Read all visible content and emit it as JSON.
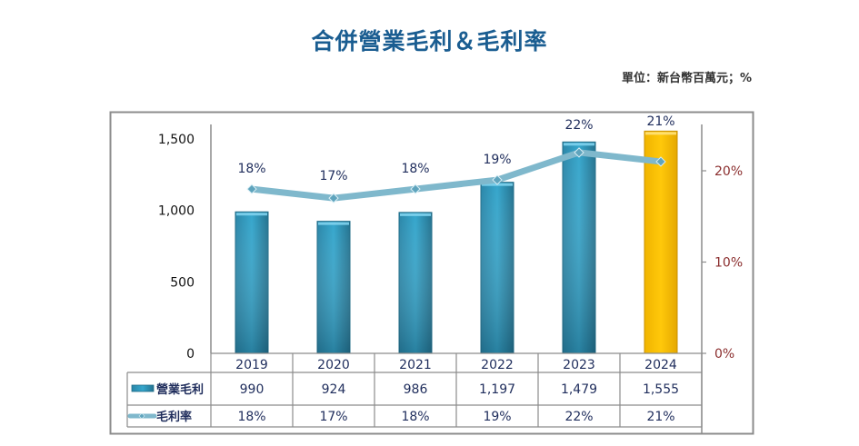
{
  "title": "合併營業毛利＆毛利率",
  "unit_label": "單位：新台幣百萬元；%",
  "colors": {
    "title": "#1a5d91",
    "bar": "#2e9ac0",
    "bar_highlight": "#ffc000",
    "line": "#7fb8cc",
    "left_tick": "#111111",
    "right_tick": "#8b2e2e",
    "data_label": "#1f2d5c"
  },
  "chart_data": {
    "type": "bar",
    "title": "合併營業毛利＆毛利率",
    "categories": [
      "2019",
      "2020",
      "2021",
      "2022",
      "2023",
      "2024"
    ],
    "series": [
      {
        "name": "營業毛利",
        "type": "bar",
        "axis": "left",
        "values": [
          990,
          924,
          986,
          1197,
          1479,
          1555
        ],
        "highlight_index": 5
      },
      {
        "name": "毛利率",
        "type": "line",
        "axis": "right",
        "values": [
          18,
          17,
          18,
          19,
          22,
          21
        ],
        "labels": [
          "18%",
          "17%",
          "18%",
          "19%",
          "22%",
          "21%"
        ]
      }
    ],
    "left_axis": {
      "ylim": [
        0,
        1500
      ],
      "ticks": [
        0,
        500,
        1000,
        1500
      ],
      "tick_labels": [
        "0",
        "500",
        "1,000",
        "1,500"
      ]
    },
    "right_axis": {
      "ylim": [
        0,
        25
      ],
      "ticks": [
        0,
        10,
        20
      ],
      "tick_labels": [
        "0%",
        "10%",
        "20%"
      ]
    },
    "data_table": {
      "rows": [
        {
          "legend": "營業毛利",
          "cells": [
            "990",
            "924",
            "986",
            "1,197",
            "1,479",
            "1,555"
          ]
        },
        {
          "legend": "毛利率",
          "cells": [
            "18%",
            "17%",
            "18%",
            "19%",
            "22%",
            "21%"
          ]
        }
      ]
    },
    "xlabel": "",
    "ylabel": "",
    "grid": false
  }
}
